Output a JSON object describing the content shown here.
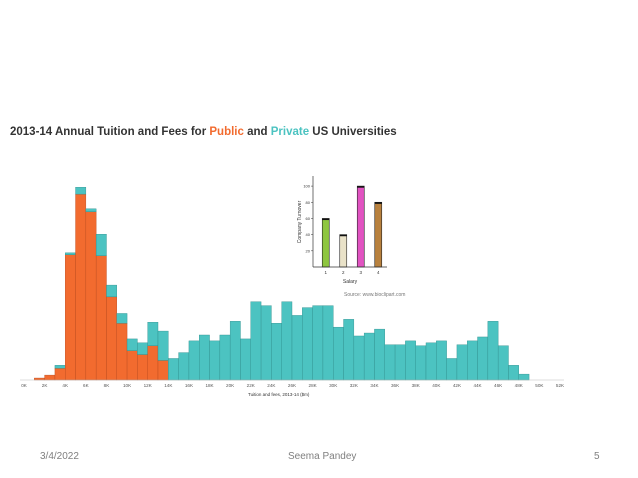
{
  "chart_data": [
    {
      "type": "bar",
      "stacked": true,
      "title_parts": [
        "2013-14 Annual Tuition and Fees for ",
        "Public",
        " and ",
        "Private",
        " US Universities"
      ],
      "xlabel": "Tuition and fees, 2013-14 ($m)",
      "ylabel": "",
      "grid": false,
      "legend": "none",
      "x_tick_labels": [
        "0K",
        "2K",
        "4K",
        "6K",
        "8K",
        "10K",
        "12K",
        "14K",
        "16K",
        "18K",
        "20K",
        "22K",
        "24K",
        "26K",
        "28K",
        "30K",
        "32K",
        "34K",
        "36K",
        "38K",
        "40K",
        "42K",
        "44K",
        "46K",
        "48K",
        "50K",
        "52K"
      ],
      "bin_width": 1000,
      "ylim": [
        0,
        230
      ],
      "series": [
        {
          "name": "Public",
          "color": "#f26b2f",
          "values": [
            0,
            2,
            5,
            12,
            128,
            190,
            172,
            127,
            85,
            58,
            30,
            26,
            35,
            20,
            0,
            0,
            0,
            0,
            0,
            0,
            0,
            0,
            0,
            0,
            0,
            0,
            0,
            0,
            0,
            0,
            0,
            0,
            0,
            0,
            0,
            0,
            0,
            0,
            0,
            0,
            0,
            0,
            0,
            0,
            0,
            0,
            0,
            0,
            0,
            0,
            0,
            0
          ]
        },
        {
          "name": "Private",
          "color": "#4cc3c1",
          "values": [
            0,
            0,
            0,
            3,
            2,
            7,
            3,
            22,
            12,
            10,
            12,
            12,
            24,
            30,
            22,
            28,
            40,
            46,
            40,
            46,
            60,
            42,
            80,
            76,
            58,
            80,
            66,
            74,
            76,
            76,
            54,
            62,
            45,
            48,
            52,
            36,
            36,
            40,
            35,
            38,
            40,
            22,
            36,
            40,
            44,
            60,
            35,
            15,
            6,
            0,
            0,
            0
          ]
        }
      ]
    },
    {
      "type": "bar",
      "xlabel": "Salary",
      "ylabel": "Company Turnover",
      "categories": [
        "1",
        "2",
        "3",
        "4"
      ],
      "values": [
        60,
        40,
        100,
        80
      ],
      "colors": [
        "#8ec63f",
        "#e9e2c8",
        "#e153c1",
        "#b8813e"
      ],
      "y_tick_labels": [
        "20",
        "40",
        "60",
        "80",
        "100"
      ],
      "ylim": [
        0,
        110
      ],
      "caption": "Source: www.bioclipart.com"
    }
  ],
  "footer": {
    "date": "3/4/2022",
    "author": "Seema Pandey",
    "page": "5"
  }
}
